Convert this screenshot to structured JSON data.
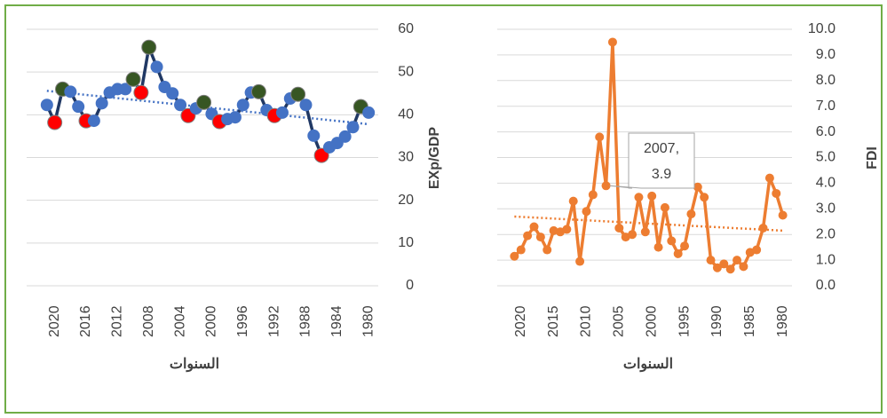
{
  "chart_data": [
    {
      "type": "line",
      "y_label": "EXp/GDP",
      "x_label": "السنوات",
      "x": [
        2021,
        2020,
        2019,
        2018,
        2017,
        2016,
        2015,
        2014,
        2013,
        2012,
        2011,
        2010,
        2009,
        2008,
        2007,
        2006,
        2005,
        2004,
        2003,
        2002,
        2001,
        2000,
        1999,
        1998,
        1997,
        1996,
        1995,
        1994,
        1993,
        1992,
        1991,
        1990,
        1989,
        1988,
        1987,
        1986,
        1985,
        1984,
        1983,
        1982,
        1981,
        1980
      ],
      "series": [
        {
          "color": "#203864",
          "values": [
            42.3,
            38.2,
            46,
            45.4,
            41.9,
            38.6,
            38.6,
            42.7,
            45.2,
            46,
            46,
            48.3,
            45.2,
            55.8,
            51.2,
            46.5,
            45,
            42.3,
            39.8,
            41.5,
            42.9,
            40.2,
            38.4,
            39,
            39.4,
            42.3,
            45.2,
            45.4,
            41.1,
            39.8,
            40.5,
            43.8,
            44.8,
            42.3,
            35.1,
            30.5,
            32.4,
            33.4,
            34.9,
            37.1,
            41.9,
            40.5
          ],
          "marker_colors": [
            "#4472c4",
            "#ff0000",
            "#375623",
            "#4472c4",
            "#4472c4",
            "#ff0000",
            "#4472c4",
            "#4472c4",
            "#4472c4",
            "#4472c4",
            "#4472c4",
            "#375623",
            "#ff0000",
            "#375623",
            "#4472c4",
            "#4472c4",
            "#4472c4",
            "#4472c4",
            "#ff0000",
            "#4472c4",
            "#375623",
            "#4472c4",
            "#ff0000",
            "#4472c4",
            "#4472c4",
            "#4472c4",
            "#4472c4",
            "#375623",
            "#4472c4",
            "#ff0000",
            "#4472c4",
            "#4472c4",
            "#375623",
            "#4472c4",
            "#4472c4",
            "#ff0000",
            "#4472c4",
            "#4472c4",
            "#4472c4",
            "#4472c4",
            "#375623",
            "#4472c4"
          ]
        }
      ],
      "trend": {
        "color": "#4472c4",
        "x": [
          2021,
          1980
        ],
        "values": [
          45.6,
          37.8
        ]
      },
      "xlim": [
        2022,
        1979
      ],
      "xticks": [
        2020,
        2016,
        2012,
        2008,
        2004,
        2000,
        1996,
        1992,
        1988,
        1984,
        1980
      ],
      "ylim": [
        0,
        60
      ],
      "yticks": [
        0,
        10,
        20,
        30,
        40,
        50,
        60
      ],
      "grid": true
    },
    {
      "type": "line",
      "y_label": "FDI",
      "x_label": "السنوات",
      "x": [
        2021,
        2020,
        2019,
        2018,
        2017,
        2016,
        2015,
        2014,
        2013,
        2012,
        2011,
        2010,
        2009,
        2008,
        2007,
        2006,
        2005,
        2004,
        2003,
        2002,
        2001,
        2000,
        1999,
        1998,
        1997,
        1996,
        1995,
        1994,
        1993,
        1992,
        1991,
        1990,
        1989,
        1988,
        1987,
        1986,
        1985,
        1984,
        1983,
        1982,
        1981,
        1980
      ],
      "series": [
        {
          "color": "#ed7d31",
          "values": [
            1.15,
            1.4,
            1.95,
            2.3,
            1.9,
            1.4,
            2.15,
            2.1,
            2.2,
            3.3,
            0.95,
            2.9,
            3.55,
            5.8,
            3.9,
            9.5,
            2.25,
            1.9,
            2.0,
            3.45,
            2.1,
            3.5,
            1.5,
            3.05,
            1.75,
            1.25,
            1.55,
            2.8,
            3.85,
            3.45,
            1.0,
            0.7,
            0.85,
            0.65,
            1.0,
            0.75,
            1.3,
            1.4,
            2.25,
            4.2,
            3.6,
            2.75
          ]
        }
      ],
      "trend": {
        "color": "#ed7d31",
        "x": [
          2021,
          1980
        ],
        "values": [
          2.7,
          2.15
        ]
      },
      "annotation": {
        "x": 2007,
        "y": 3.9,
        "label_lines": [
          "2007,",
          "3.9"
        ]
      },
      "xlim": [
        2022,
        1979
      ],
      "xticks": [
        2020,
        2015,
        2010,
        2005,
        2000,
        1995,
        1990,
        1985,
        1980
      ],
      "ylim": [
        0,
        10
      ],
      "yticks": [
        {
          "value": 0,
          "label": "0.0"
        },
        {
          "value": 1,
          "label": "1.0"
        },
        {
          "value": 2,
          "label": "2.0"
        },
        {
          "value": 3,
          "label": "3.0"
        },
        {
          "value": 4,
          "label": "4.0"
        },
        {
          "value": 5,
          "label": "5.0"
        },
        {
          "value": 6,
          "label": "6.0"
        },
        {
          "value": 7,
          "label": "7.0"
        },
        {
          "value": 8,
          "label": "8.0"
        },
        {
          "value": 9,
          "label": "9.0"
        },
        {
          "value": 10,
          "label": "10.0"
        }
      ],
      "grid": true
    }
  ]
}
